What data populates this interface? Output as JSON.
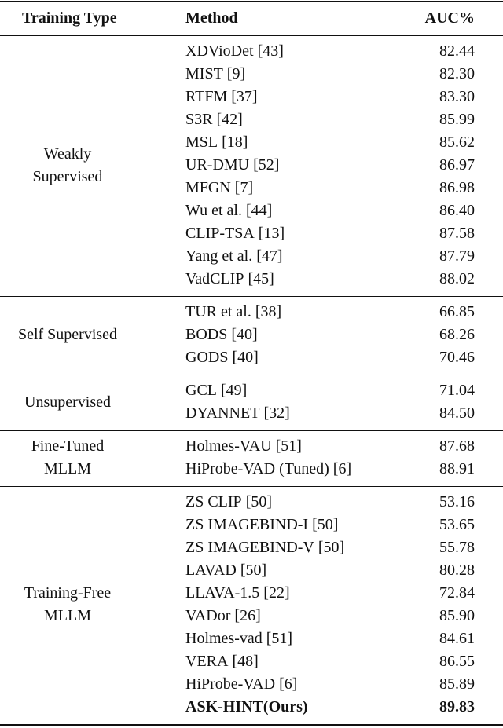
{
  "header": {
    "type": "Training Type",
    "method": "Method",
    "auc": "AUC%"
  },
  "groups": [
    {
      "type": [
        "Weakly",
        "Supervised"
      ],
      "rows": [
        {
          "method": "XDVioDet",
          "ref": "[43]",
          "auc": "82.44"
        },
        {
          "method": "MIST",
          "ref": "[9]",
          "auc": "82.30"
        },
        {
          "method": "RTFM",
          "ref": "[37]",
          "auc": "83.30"
        },
        {
          "method": "S3R",
          "ref": "[42]",
          "auc": "85.99"
        },
        {
          "method": "MSL",
          "ref": "[18]",
          "auc": "85.62"
        },
        {
          "method": "UR-DMU",
          "ref": "[52]",
          "auc": "86.97"
        },
        {
          "method": "MFGN",
          "ref": "[7]",
          "auc": "86.98"
        },
        {
          "method": "Wu et al.",
          "ref": "[44]",
          "auc": "86.40"
        },
        {
          "method": "CLIP-TSA",
          "ref": "[13]",
          "auc": "87.58"
        },
        {
          "method": "Yang et al.",
          "ref": "[47]",
          "auc": "87.79"
        },
        {
          "method": "VadCLIP",
          "ref": "[45]",
          "auc": "88.02"
        }
      ]
    },
    {
      "type": [
        "Self Supervised"
      ],
      "rows": [
        {
          "method": "TUR et al.",
          "ref": "[38]",
          "auc": "66.85"
        },
        {
          "method": "BODS",
          "ref": "[40]",
          "auc": "68.26"
        },
        {
          "method": "GODS",
          "ref": "[40]",
          "auc": "70.46"
        }
      ]
    },
    {
      "type": [
        "Unsupervised"
      ],
      "rows": [
        {
          "method": "GCL",
          "ref": "[49]",
          "auc": "71.04"
        },
        {
          "method": "DYANNET",
          "ref": "[32]",
          "auc": "84.50"
        }
      ]
    },
    {
      "type": [
        "Fine-Tuned",
        "MLLM"
      ],
      "rows": [
        {
          "method": "Holmes-VAU",
          "ref": "[51]",
          "auc": "87.68"
        },
        {
          "method": "HiProbe-VAD (Tuned)",
          "ref": "[6]",
          "auc": "88.91"
        }
      ]
    },
    {
      "type": [
        "Training-Free",
        "MLLM"
      ],
      "rows": [
        {
          "method": "ZS CLIP",
          "ref": "[50]",
          "auc": "53.16"
        },
        {
          "method": "ZS IMAGEBIND-I",
          "ref": "[50]",
          "auc": "53.65"
        },
        {
          "method": "ZS IMAGEBIND-V",
          "ref": "[50]",
          "auc": "55.78"
        },
        {
          "method": "LAVAD",
          "ref": "[50]",
          "auc": "80.28"
        },
        {
          "method": "LLAVA-1.5",
          "ref": "[22]",
          "auc": "72.84"
        },
        {
          "method": "VADor",
          "ref": "[26]",
          "auc": "85.90"
        },
        {
          "method": "Holmes-vad",
          "ref": "[51]",
          "auc": "84.61"
        },
        {
          "method": "VERA",
          "ref": "[48]",
          "auc": "86.55"
        },
        {
          "method": "HiProbe-VAD",
          "ref": "[6]",
          "auc": "85.89"
        },
        {
          "method": "ASK-HINT(Ours)",
          "auc": "89.83",
          "bold": true
        }
      ]
    }
  ]
}
